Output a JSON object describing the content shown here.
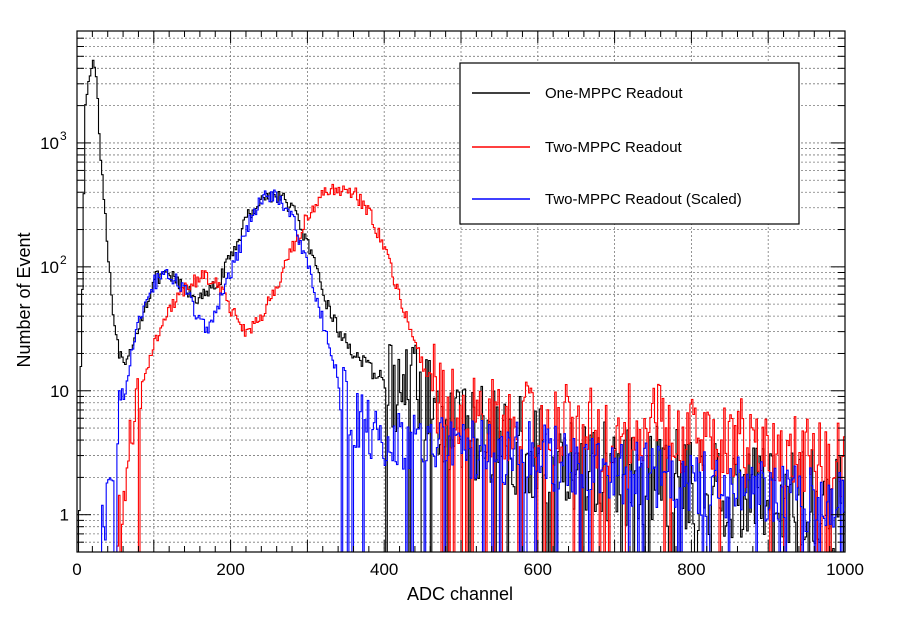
{
  "chart_data": {
    "type": "line",
    "xlabel": "ADC channel",
    "ylabel": "Number of Event",
    "xlim": [
      0,
      1000
    ],
    "ylim": [
      0.5,
      8000
    ],
    "yscale": "log",
    "grid": true,
    "legend_position": "top-right",
    "x_tick_labels": [
      "0",
      "200",
      "400",
      "600",
      "800",
      "1000"
    ],
    "y_tick_labels": [
      {
        "value": 1,
        "label": "1"
      },
      {
        "value": 10,
        "label": "10"
      },
      {
        "value": 100,
        "label": "10",
        "exponent": "2"
      },
      {
        "value": 1000,
        "label": "10",
        "exponent": "3"
      }
    ],
    "series": [
      {
        "name": "One-MPPC Readout",
        "color": "#000000",
        "x": [
          0,
          10,
          20,
          25,
          30,
          40,
          50,
          60,
          70,
          80,
          100,
          120,
          140,
          160,
          180,
          200,
          220,
          240,
          260,
          280,
          300,
          320,
          340,
          360,
          380,
          400,
          420,
          440,
          460,
          480,
          500,
          550,
          600,
          650,
          700,
          750,
          800,
          850,
          900,
          950,
          1000
        ],
        "y": [
          0.5,
          2000,
          5000,
          3000,
          800,
          120,
          25,
          15,
          20,
          35,
          80,
          85,
          65,
          55,
          70,
          120,
          250,
          360,
          380,
          300,
          150,
          60,
          30,
          20,
          15,
          12,
          8,
          9,
          7,
          6,
          5,
          4,
          3.2,
          2.6,
          2.2,
          2,
          1.8,
          1.6,
          1.5,
          1.3,
          1.2
        ],
        "noise": 0.7
      },
      {
        "name": "Two-MPPC Readout",
        "color": "#ff0000",
        "x": [
          50,
          55,
          60,
          70,
          80,
          100,
          120,
          140,
          160,
          180,
          200,
          220,
          240,
          260,
          280,
          300,
          320,
          340,
          360,
          380,
          400,
          420,
          440,
          460,
          480,
          500,
          550,
          600,
          650,
          700,
          750,
          800,
          850,
          900,
          950,
          1000
        ],
        "y": [
          0.5,
          1,
          2,
          5,
          10,
          25,
          45,
          65,
          85,
          80,
          45,
          30,
          40,
          70,
          140,
          260,
          380,
          430,
          400,
          270,
          140,
          55,
          22,
          12,
          8,
          7,
          6,
          6,
          5,
          5,
          5,
          4.5,
          4,
          3.5,
          3,
          2.5
        ],
        "noise": 0.6
      },
      {
        "name": "Two-MPPC Readout (Scaled)",
        "color": "#0000ff",
        "x": [
          30,
          35,
          40,
          50,
          60,
          70,
          80,
          100,
          120,
          140,
          160,
          170,
          180,
          200,
          220,
          240,
          250,
          260,
          280,
          300,
          320,
          340,
          360,
          380,
          400,
          450,
          500,
          550,
          600,
          650,
          700,
          750,
          800,
          850,
          900,
          950,
          1000
        ],
        "y": [
          0.5,
          1,
          2,
          4,
          10,
          20,
          40,
          75,
          85,
          65,
          35,
          30,
          45,
          90,
          210,
          350,
          380,
          360,
          250,
          100,
          35,
          12,
          6,
          4.5,
          4,
          4,
          3.5,
          3.2,
          3,
          2.6,
          2.3,
          2,
          1.8,
          1.6,
          1.5,
          1.3,
          1.2
        ],
        "noise": 0.45
      }
    ]
  }
}
